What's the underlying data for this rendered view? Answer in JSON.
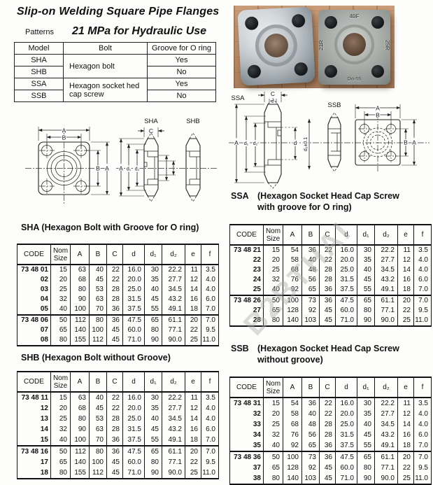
{
  "header": {
    "title": "Slip-on Welding Square Pipe Flanges",
    "patterns_label": "Patterns",
    "subtitle": "21 MPa for Hydraulic Use"
  },
  "watermark": "B2BTHAI",
  "patterns_table": {
    "headers": [
      "Model",
      "Bolt",
      "Groove for O ring"
    ],
    "rows": [
      {
        "model": "SHA",
        "bolt": "Hexagon bolt",
        "groove": "Yes"
      },
      {
        "model": "SHB",
        "groove": "No"
      },
      {
        "model": "SSA",
        "bolt": "Hexagon socket hed cap screw",
        "groove": "Yes"
      },
      {
        "model": "SSB",
        "groove": "No"
      }
    ]
  },
  "photos": {
    "right_flange_markings": {
      "top": "40F",
      "left": "21R",
      "right": "25R",
      "bottom": "Dn-55"
    }
  },
  "drawings": {
    "shx": {
      "sha": "SHA",
      "shb": "SHB",
      "a_top": "A",
      "b_top": "B",
      "b_right": "B",
      "a_right": "A",
      "c": "C",
      "sec_a": "A",
      "sec_d1": "d₁",
      "sec_d2": "d₂"
    },
    "ssx": {
      "ssa": "SSA",
      "ssb": "SSB",
      "c": "C",
      "e": "e",
      "sec_a": "A",
      "sec_d1": "d₁",
      "sec_d2": "d₂",
      "d": "d",
      "d2_tol": "d₂±0.1",
      "a_top": "A",
      "b_top": "B",
      "b_right": "B",
      "a_right": "A"
    }
  },
  "sections": {
    "sha": {
      "label": "SHA",
      "desc": "(Hexagon Bolt with Groove for O ring)"
    },
    "shb": {
      "label": "SHB",
      "desc": "(Hexagon Bolt without Groove)"
    },
    "ssa": {
      "label": "SSA",
      "desc1": "(Hexagon Socket Head Cap Screw",
      "desc2": "with groove for O ring)"
    },
    "ssb": {
      "label": "SSB",
      "desc1": "(Hexagon Socket Head Cap Screw",
      "desc2": "without groove)"
    }
  },
  "dim_tables": {
    "col_headers": [
      "CODE",
      "Nom Size",
      "A",
      "B",
      "C",
      "d",
      "d₁",
      "d₂",
      "e",
      "f"
    ],
    "group_starts": [
      5
    ],
    "tables": {
      "sha": {
        "rows": [
          [
            "73 48 01",
            "15",
            "63",
            "40",
            "22",
            "16.0",
            "30",
            "22.2",
            "11",
            "3.5"
          ],
          [
            "02",
            "20",
            "68",
            "45",
            "22",
            "20.0",
            "35",
            "27.7",
            "12",
            "4.0"
          ],
          [
            "03",
            "25",
            "80",
            "53",
            "28",
            "25.0",
            "40",
            "34.5",
            "14",
            "4.0"
          ],
          [
            "04",
            "32",
            "90",
            "63",
            "28",
            "31.5",
            "45",
            "43.2",
            "16",
            "6.0"
          ],
          [
            "05",
            "40",
            "100",
            "70",
            "36",
            "37.5",
            "55",
            "49.1",
            "18",
            "7.0"
          ],
          [
            "73 48 06",
            "50",
            "112",
            "80",
            "36",
            "47.5",
            "65",
            "61.1",
            "20",
            "7.0"
          ],
          [
            "07",
            "65",
            "140",
            "100",
            "45",
            "60.0",
            "80",
            "77.1",
            "22",
            "9.5"
          ],
          [
            "08",
            "80",
            "155",
            "112",
            "45",
            "71.0",
            "90",
            "90.0",
            "25",
            "11.0"
          ]
        ]
      },
      "shb": {
        "rows": [
          [
            "73 48 11",
            "15",
            "63",
            "40",
            "22",
            "16.0",
            "30",
            "22.2",
            "11",
            "3.5"
          ],
          [
            "12",
            "20",
            "68",
            "45",
            "22",
            "20.0",
            "35",
            "27.7",
            "12",
            "4.0"
          ],
          [
            "13",
            "25",
            "80",
            "53",
            "28",
            "25.0",
            "40",
            "34.5",
            "14",
            "4.0"
          ],
          [
            "14",
            "32",
            "90",
            "63",
            "28",
            "31.5",
            "45",
            "43.2",
            "16",
            "6.0"
          ],
          [
            "15",
            "40",
            "100",
            "70",
            "36",
            "37.5",
            "55",
            "49.1",
            "18",
            "7.0"
          ],
          [
            "73 48 16",
            "50",
            "112",
            "80",
            "36",
            "47.5",
            "65",
            "61.1",
            "20",
            "7.0"
          ],
          [
            "17",
            "65",
            "140",
            "100",
            "45",
            "60.0",
            "80",
            "77.1",
            "22",
            "9.5"
          ],
          [
            "18",
            "80",
            "155",
            "112",
            "45",
            "71.0",
            "90",
            "90.0",
            "25",
            "11.0"
          ]
        ]
      },
      "ssa": {
        "rows": [
          [
            "73 48 21",
            "15",
            "54",
            "36",
            "22",
            "16.0",
            "30",
            "22.2",
            "11",
            "3.5"
          ],
          [
            "22",
            "20",
            "58",
            "40",
            "22",
            "20.0",
            "35",
            "27.7",
            "12",
            "4.0"
          ],
          [
            "23",
            "25",
            "68",
            "48",
            "28",
            "25.0",
            "40",
            "34.5",
            "14",
            "4.0"
          ],
          [
            "24",
            "32",
            "76",
            "56",
            "28",
            "31.5",
            "45",
            "43.2",
            "16",
            "6.0"
          ],
          [
            "25",
            "40",
            "92",
            "65",
            "36",
            "37.5",
            "55",
            "49.1",
            "18",
            "7.0"
          ],
          [
            "73 48 26",
            "50",
            "100",
            "73",
            "36",
            "47.5",
            "65",
            "61.1",
            "20",
            "7.0"
          ],
          [
            "27",
            "65",
            "128",
            "92",
            "45",
            "60.0",
            "80",
            "77.1",
            "22",
            "9.5"
          ],
          [
            "28",
            "80",
            "140",
            "103",
            "45",
            "71.0",
            "90",
            "90.0",
            "25",
            "11.0"
          ]
        ]
      },
      "ssb": {
        "rows": [
          [
            "73 48 31",
            "15",
            "54",
            "36",
            "22",
            "16.0",
            "30",
            "22.2",
            "11",
            "3.5"
          ],
          [
            "32",
            "20",
            "58",
            "40",
            "22",
            "20.0",
            "35",
            "27.7",
            "12",
            "4.0"
          ],
          [
            "33",
            "25",
            "68",
            "48",
            "28",
            "25.0",
            "40",
            "34.5",
            "14",
            "4.0"
          ],
          [
            "34",
            "32",
            "76",
            "56",
            "28",
            "31.5",
            "45",
            "43.2",
            "16",
            "6.0"
          ],
          [
            "35",
            "40",
            "92",
            "65",
            "36",
            "37.5",
            "55",
            "49.1",
            "18",
            "7.0"
          ],
          [
            "73 48 36",
            "50",
            "100",
            "73",
            "36",
            "47.5",
            "65",
            "61.1",
            "20",
            "7.0"
          ],
          [
            "37",
            "65",
            "128",
            "92",
            "45",
            "60.0",
            "80",
            "77.1",
            "22",
            "9.5"
          ],
          [
            "38",
            "80",
            "140",
            "103",
            "45",
            "71.0",
            "90",
            "90.0",
            "25",
            "11.0"
          ]
        ]
      }
    }
  },
  "colors": {
    "ink": "#111111",
    "wood": "#bd906c",
    "metal_light": "#eef1f3",
    "metal_dark": "#6d757c",
    "cast_metal": "#abafac",
    "watermark_gray": "#ababab"
  }
}
